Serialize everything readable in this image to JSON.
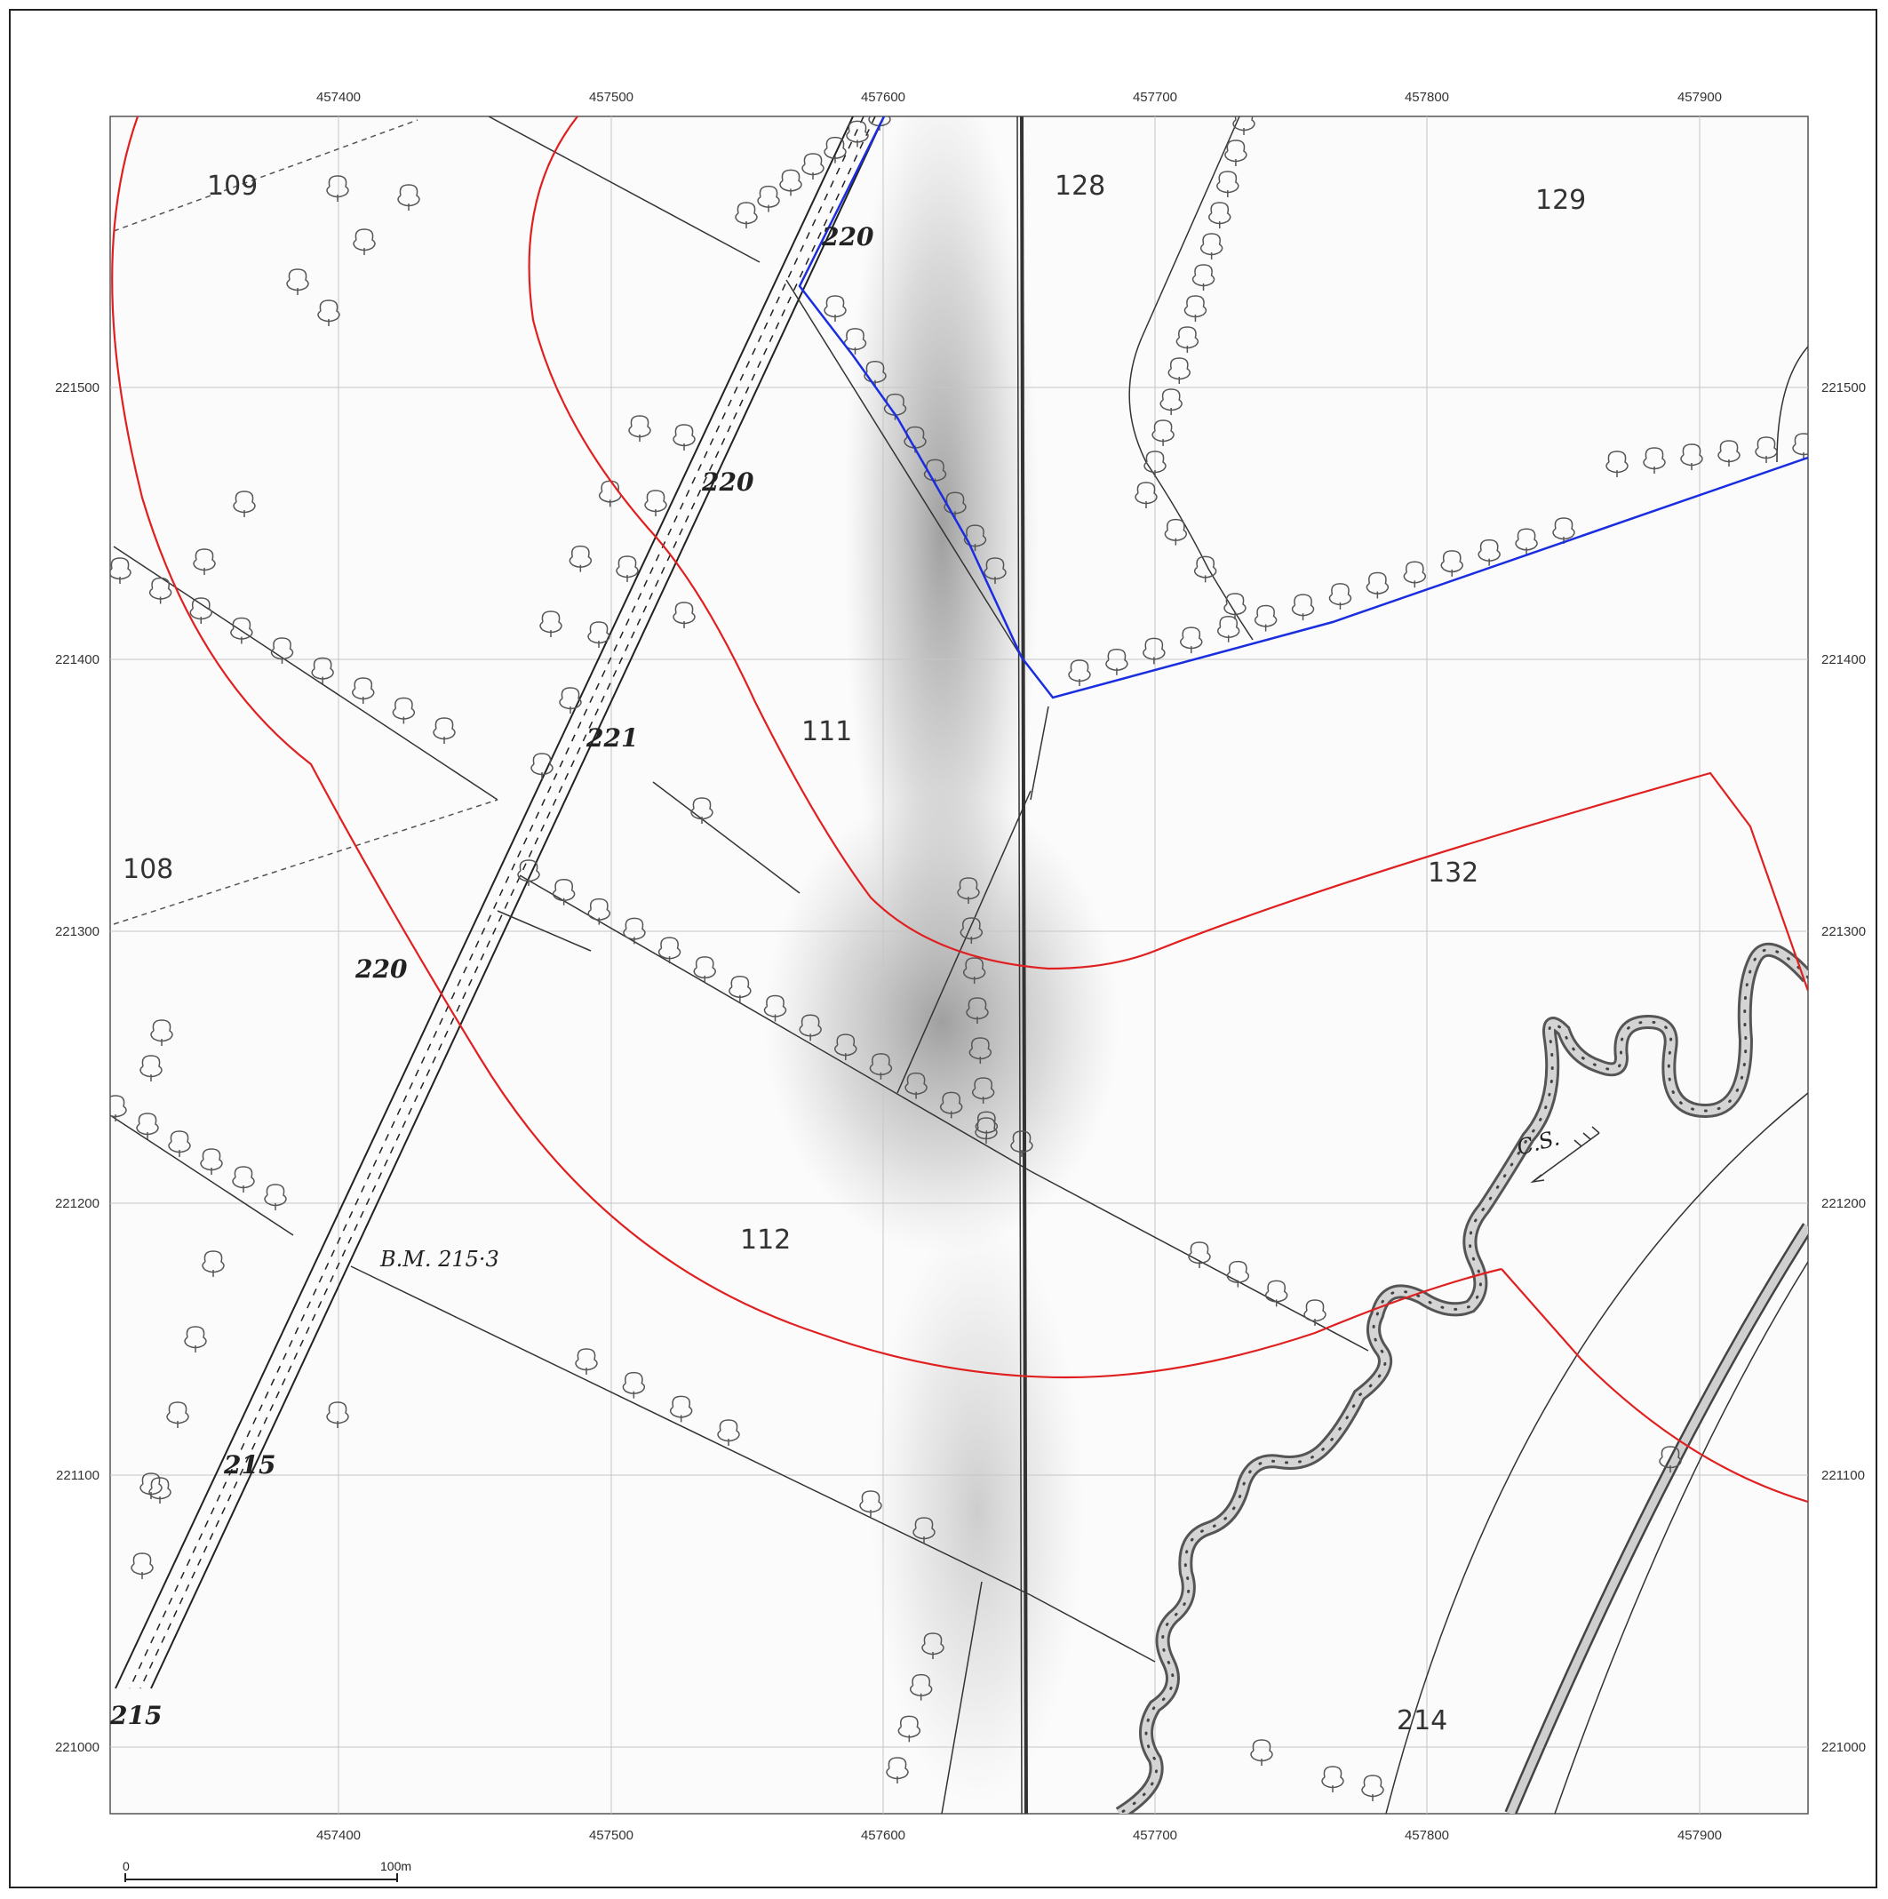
{
  "grid": {
    "x_labels": [
      "457400",
      "457500",
      "457600",
      "457700",
      "457800",
      "457900"
    ],
    "y_labels": [
      "221500",
      "221400",
      "221300",
      "221200",
      "221100",
      "221000"
    ]
  },
  "parcels": {
    "p109": "109",
    "p128": "128",
    "p129": "129",
    "p111": "111",
    "p108": "108",
    "p132": "132",
    "p112": "112",
    "p214": "214"
  },
  "heights": {
    "h220a": "220",
    "h220b": "220",
    "h221": "221",
    "h220c": "220",
    "h215a": "215",
    "h215b": "215"
  },
  "annotations": {
    "benchmark": "B.M. 215·3",
    "cs": "C.S."
  },
  "scale_bar": {
    "start": "0",
    "end": "100m"
  },
  "colors": {
    "buffer_red": "#e02020",
    "site_blue": "#1a2ee0",
    "grid": "#bfbfbf"
  }
}
